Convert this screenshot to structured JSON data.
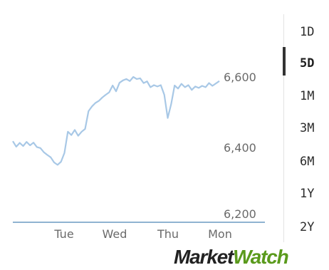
{
  "chart_data": {
    "type": "line",
    "x_ticks": [
      "Tue",
      "Wed",
      "Thu",
      "Mon"
    ],
    "y_ticks": [
      "6,600",
      "6,400",
      "6,200"
    ],
    "ylim": [
      6200,
      6620
    ],
    "grid": false,
    "series": [
      {
        "color": "#a8c8e6",
        "points": [
          [
            0.0,
            6412
          ],
          [
            0.05,
            6396
          ],
          [
            0.1,
            6407
          ],
          [
            0.15,
            6398
          ],
          [
            0.2,
            6410
          ],
          [
            0.25,
            6400
          ],
          [
            0.3,
            6408
          ],
          [
            0.35,
            6395
          ],
          [
            0.4,
            6392
          ],
          [
            0.45,
            6380
          ],
          [
            0.5,
            6372
          ],
          [
            0.55,
            6365
          ],
          [
            0.6,
            6350
          ],
          [
            0.65,
            6343
          ],
          [
            0.7,
            6352
          ],
          [
            0.75,
            6378
          ],
          [
            0.8,
            6440
          ],
          [
            0.85,
            6430
          ],
          [
            0.9,
            6445
          ],
          [
            0.95,
            6428
          ],
          [
            1.0,
            6440
          ],
          [
            1.05,
            6448
          ],
          [
            1.1,
            6500
          ],
          [
            1.15,
            6514
          ],
          [
            1.2,
            6524
          ],
          [
            1.25,
            6530
          ],
          [
            1.3,
            6540
          ],
          [
            1.35,
            6548
          ],
          [
            1.4,
            6555
          ],
          [
            1.45,
            6575
          ],
          [
            1.5,
            6558
          ],
          [
            1.55,
            6583
          ],
          [
            1.6,
            6590
          ],
          [
            1.65,
            6594
          ],
          [
            1.7,
            6588
          ],
          [
            1.75,
            6600
          ],
          [
            1.8,
            6594
          ],
          [
            1.85,
            6596
          ],
          [
            1.9,
            6582
          ],
          [
            1.95,
            6587
          ],
          [
            2.0,
            6570
          ],
          [
            2.05,
            6576
          ],
          [
            2.1,
            6572
          ],
          [
            2.15,
            6576
          ],
          [
            2.2,
            6548
          ],
          [
            2.25,
            6480
          ],
          [
            2.3,
            6520
          ],
          [
            2.35,
            6575
          ],
          [
            2.4,
            6566
          ],
          [
            2.45,
            6580
          ],
          [
            2.5,
            6570
          ],
          [
            2.55,
            6576
          ],
          [
            2.6,
            6562
          ],
          [
            2.65,
            6572
          ],
          [
            2.7,
            6568
          ],
          [
            2.75,
            6574
          ],
          [
            2.8,
            6570
          ],
          [
            2.85,
            6582
          ],
          [
            2.9,
            6574
          ],
          [
            3.0,
            6588
          ]
        ]
      }
    ],
    "baseline_color": "#8fb3d1"
  },
  "range_buttons": [
    "1D",
    "5D",
    "1M",
    "3M",
    "6M",
    "1Y",
    "2Y"
  ],
  "active_range": "5D",
  "logo": {
    "part1": "Market",
    "part2": "Watch"
  }
}
